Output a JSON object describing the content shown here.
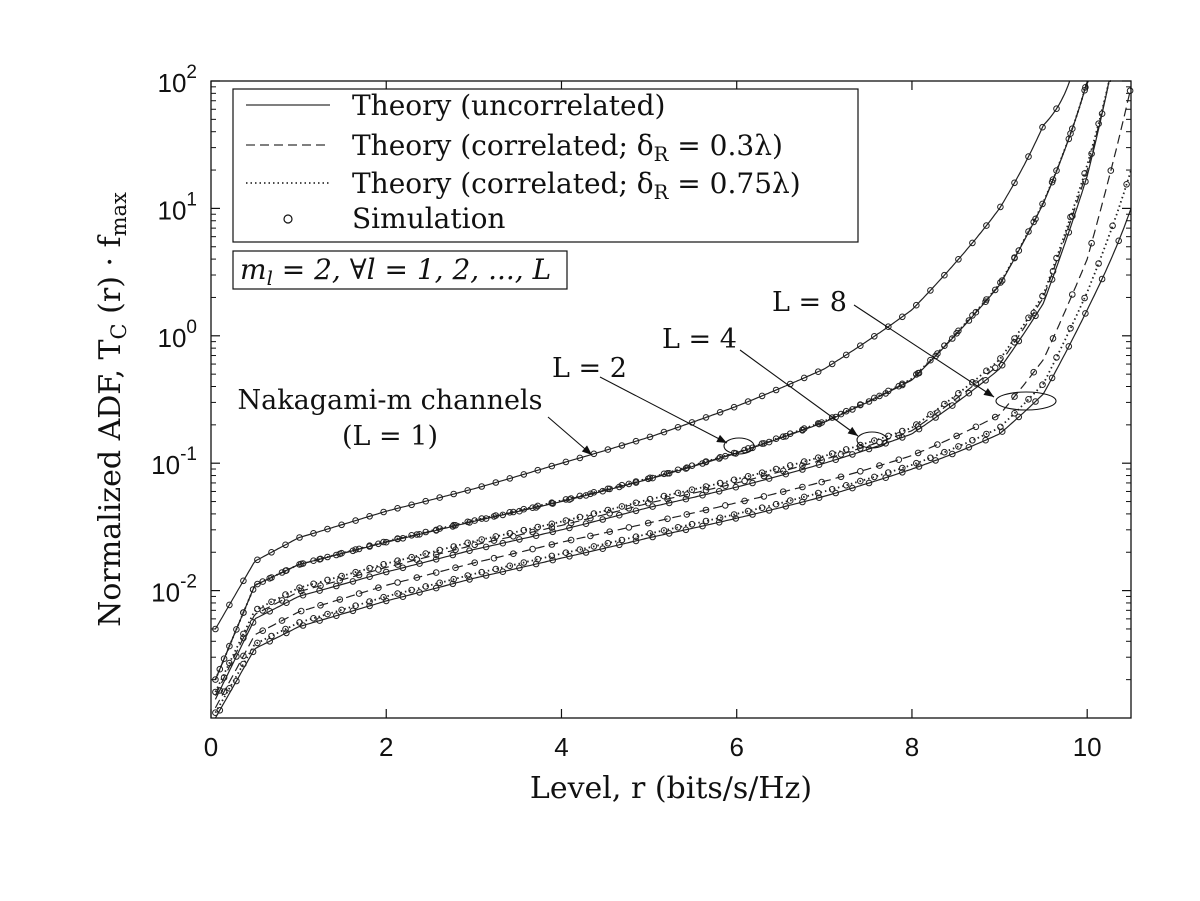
{
  "chart_data": {
    "type": "line",
    "xlabel": "Level, r (bits/s/Hz)",
    "ylabel": "Normalized ADF, T_C (r) · f_max",
    "xlim": [
      0,
      10.5
    ],
    "ylim": [
      0.001,
      100
    ],
    "yscale": "log",
    "x_ticks": [
      "0",
      "2",
      "4",
      "6",
      "8",
      "10"
    ],
    "y_ticks": [
      {
        "value": 0.01,
        "base": "10",
        "exp": "-2"
      },
      {
        "value": 0.1,
        "base": "10",
        "exp": "-1"
      },
      {
        "value": 1,
        "base": "10",
        "exp": "0"
      },
      {
        "value": 10,
        "base": "10",
        "exp": "1"
      },
      {
        "value": 100,
        "base": "10",
        "exp": "2"
      }
    ],
    "grid": false,
    "legend_position": "top-left",
    "legend": [
      {
        "label": "Theory (uncorrelated)",
        "style": "solid"
      },
      {
        "label": "Theory (correlated; δ_R = 0.3λ)",
        "style": "dashed"
      },
      {
        "label": "Theory (correlated; δ_R = 0.75λ)",
        "style": "dotted"
      },
      {
        "label": "Simulation",
        "style": "circle"
      }
    ],
    "parameter_box": "m_l = 2, ∀l = 1, 2, ..., L",
    "annotations": [
      {
        "id": "L1",
        "lines": [
          "Nakagami-m channels",
          "(L = 1)"
        ]
      },
      {
        "id": "L2",
        "lines": [
          "L = 2"
        ]
      },
      {
        "id": "L4",
        "lines": [
          "L = 4"
        ]
      },
      {
        "id": "L8",
        "lines": [
          "L = 8"
        ]
      }
    ],
    "series": [
      {
        "group": "L1",
        "style": "solid",
        "asymptote": 10.0,
        "x": [
          0.05,
          0.5,
          1,
          2,
          3,
          4,
          5,
          6,
          7,
          8,
          9,
          9.5,
          9.8
        ],
        "y": [
          0.005,
          0.017,
          0.026,
          0.042,
          0.063,
          0.1,
          0.16,
          0.28,
          0.55,
          1.6,
          10,
          45,
          100
        ]
      },
      {
        "group": "L2",
        "style": "solid",
        "asymptote": 10.3,
        "x": [
          0.05,
          0.5,
          1,
          2,
          3,
          4,
          5,
          6,
          7,
          8,
          9,
          9.5,
          10
        ],
        "y": [
          0.002,
          0.011,
          0.016,
          0.024,
          0.035,
          0.05,
          0.075,
          0.12,
          0.21,
          0.45,
          2.5,
          11,
          100
        ]
      },
      {
        "group": "L2",
        "style": "dashed",
        "asymptote": 10.3,
        "x": [
          0.05,
          0.5,
          1,
          2,
          3,
          4,
          5,
          6,
          7,
          8,
          9,
          9.5,
          10
        ],
        "y": [
          0.002,
          0.011,
          0.016,
          0.0242,
          0.0353,
          0.0505,
          0.0757,
          0.121,
          0.212,
          0.455,
          2.52,
          11.1,
          100
        ]
      },
      {
        "group": "L2",
        "style": "dotted",
        "asymptote": 10.3,
        "x": [
          0.05,
          0.5,
          1,
          2,
          3,
          4,
          5,
          6,
          7,
          8,
          9,
          9.5,
          10
        ],
        "y": [
          0.002,
          0.011,
          0.016,
          0.0244,
          0.0356,
          0.051,
          0.0765,
          0.122,
          0.214,
          0.46,
          2.55,
          11.2,
          100
        ]
      },
      {
        "group": "L4",
        "style": "solid",
        "asymptote": 10.55,
        "x": [
          0.05,
          0.5,
          1,
          2,
          3,
          4,
          5,
          6,
          7,
          8,
          9,
          9.5,
          10,
          10.25
        ],
        "y": [
          0.0014,
          0.006,
          0.009,
          0.014,
          0.021,
          0.03,
          0.045,
          0.065,
          0.1,
          0.17,
          0.55,
          1.8,
          18,
          100
        ]
      },
      {
        "group": "L4",
        "style": "dashed",
        "asymptote": 10.55,
        "x": [
          0.05,
          0.5,
          1,
          2,
          3,
          4,
          5,
          6,
          7,
          8,
          9,
          9.5,
          10,
          10.25
        ],
        "y": [
          0.0015,
          0.0065,
          0.0098,
          0.0152,
          0.0228,
          0.0325,
          0.0487,
          0.07,
          0.107,
          0.18,
          0.6,
          2.0,
          20,
          100
        ]
      },
      {
        "group": "L4",
        "style": "dotted",
        "asymptote": 10.55,
        "x": [
          0.05,
          0.5,
          1,
          2,
          3,
          4,
          5,
          6,
          7,
          8,
          9,
          9.5,
          10,
          10.25
        ],
        "y": [
          0.0016,
          0.007,
          0.0105,
          0.0163,
          0.0244,
          0.0348,
          0.052,
          0.075,
          0.114,
          0.19,
          0.65,
          2.1,
          22,
          100
        ]
      },
      {
        "group": "L8",
        "style": "solid",
        "asymptote": 10.9,
        "x": [
          0.05,
          0.5,
          1,
          2,
          3,
          4,
          5,
          6,
          7,
          8,
          9,
          9.5,
          10,
          10.5
        ],
        "y": [
          0.001,
          0.0035,
          0.0052,
          0.0083,
          0.0125,
          0.018,
          0.026,
          0.037,
          0.055,
          0.09,
          0.17,
          0.35,
          1.6,
          10
        ]
      },
      {
        "group": "L8",
        "style": "dashed",
        "asymptote": 10.9,
        "x": [
          0.05,
          0.5,
          1,
          2,
          3,
          4,
          5,
          6,
          7,
          8,
          9,
          9.5,
          10,
          10.5
        ],
        "y": [
          0.0012,
          0.0045,
          0.0068,
          0.011,
          0.0165,
          0.024,
          0.034,
          0.049,
          0.072,
          0.115,
          0.24,
          0.65,
          4,
          90
        ]
      },
      {
        "group": "L8",
        "style": "dotted",
        "asymptote": 10.9,
        "x": [
          0.05,
          0.5,
          1,
          2,
          3,
          4,
          5,
          6,
          7,
          8,
          9,
          9.5,
          10,
          10.5
        ],
        "y": [
          0.0011,
          0.0038,
          0.0056,
          0.009,
          0.0135,
          0.0195,
          0.028,
          0.04,
          0.06,
          0.097,
          0.19,
          0.42,
          2.2,
          20
        ]
      }
    ]
  }
}
